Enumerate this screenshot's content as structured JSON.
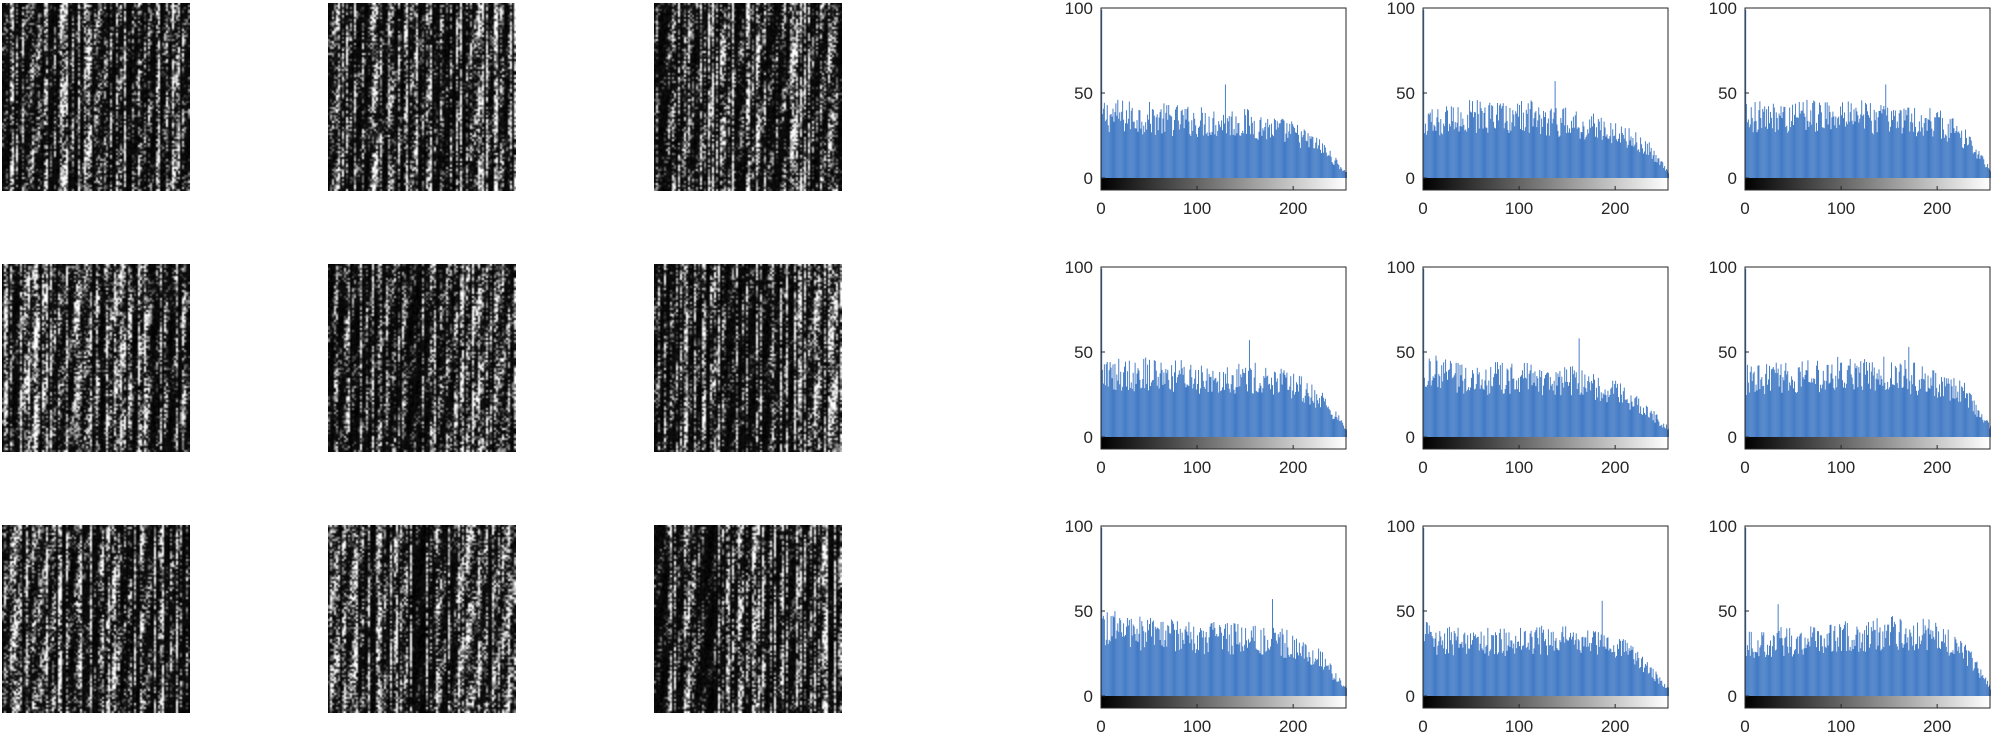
{
  "figure": {
    "images": [
      {
        "row": 0,
        "col": 0,
        "seed": 11
      },
      {
        "row": 0,
        "col": 1,
        "seed": 23
      },
      {
        "row": 0,
        "col": 2,
        "seed": 37
      },
      {
        "row": 1,
        "col": 0,
        "seed": 41
      },
      {
        "row": 1,
        "col": 1,
        "seed": 53
      },
      {
        "row": 1,
        "col": 2,
        "seed": 67
      },
      {
        "row": 2,
        "col": 0,
        "seed": 71
      },
      {
        "row": 2,
        "col": 1,
        "seed": 83
      },
      {
        "row": 2,
        "col": 2,
        "seed": 97
      }
    ]
  },
  "chart_data": [
    {
      "type": "bar",
      "panel": "histogram-r1c1",
      "xlim": [
        0,
        255
      ],
      "ylim": [
        0,
        100
      ],
      "xticks": [
        "0",
        "100",
        "200"
      ],
      "yticks": [
        "0",
        "50",
        "100"
      ],
      "bar_color": "#3f78c4",
      "colorbar": "grayscale 0-255",
      "envelope": {
        "x": [
          0,
          50,
          100,
          150,
          200,
          230,
          255
        ],
        "y": [
          38,
          36,
          34,
          33,
          27,
          18,
          3
        ]
      },
      "peak_value": 55
    },
    {
      "type": "bar",
      "panel": "histogram-r1c2",
      "xlim": [
        0,
        255
      ],
      "ylim": [
        0,
        100
      ],
      "xticks": [
        "0",
        "100",
        "200"
      ],
      "yticks": [
        "0",
        "50",
        "100"
      ],
      "bar_color": "#3f78c4",
      "colorbar": "grayscale 0-255",
      "envelope": {
        "x": [
          0,
          50,
          100,
          150,
          200,
          230,
          255
        ],
        "y": [
          32,
          37,
          38,
          33,
          28,
          20,
          4
        ]
      },
      "peak_value": 57
    },
    {
      "type": "bar",
      "panel": "histogram-r1c3",
      "xlim": [
        0,
        255
      ],
      "ylim": [
        0,
        100
      ],
      "xticks": [
        "0",
        "100",
        "200"
      ],
      "yticks": [
        "0",
        "50",
        "100"
      ],
      "bar_color": "#3f78c4",
      "colorbar": "grayscale 0-255",
      "envelope": {
        "x": [
          0,
          50,
          100,
          150,
          200,
          230,
          255
        ],
        "y": [
          36,
          37,
          37,
          36,
          33,
          24,
          5
        ]
      },
      "peak_value": 55
    },
    {
      "type": "bar",
      "panel": "histogram-r2c1",
      "xlim": [
        0,
        255
      ],
      "ylim": [
        0,
        100
      ],
      "xticks": [
        "0",
        "100",
        "200"
      ],
      "yticks": [
        "0",
        "50",
        "100"
      ],
      "bar_color": "#3f78c4",
      "colorbar": "grayscale 0-255",
      "envelope": {
        "x": [
          0,
          50,
          100,
          150,
          200,
          230,
          255
        ],
        "y": [
          38,
          38,
          36,
          36,
          31,
          22,
          5
        ]
      },
      "peak_value": 57
    },
    {
      "type": "bar",
      "panel": "histogram-r2c2",
      "xlim": [
        0,
        255
      ],
      "ylim": [
        0,
        100
      ],
      "xticks": [
        "0",
        "100",
        "200"
      ],
      "yticks": [
        "0",
        "50",
        "100"
      ],
      "bar_color": "#3f78c4",
      "colorbar": "grayscale 0-255",
      "envelope": {
        "x": [
          0,
          50,
          100,
          150,
          200,
          230,
          255
        ],
        "y": [
          40,
          35,
          36,
          34,
          27,
          17,
          5
        ]
      },
      "peak_value": 58
    },
    {
      "type": "bar",
      "panel": "histogram-r2c3",
      "xlim": [
        0,
        255
      ],
      "ylim": [
        0,
        100
      ],
      "xticks": [
        "0",
        "100",
        "200"
      ],
      "yticks": [
        "0",
        "50",
        "100"
      ],
      "bar_color": "#3f78c4",
      "colorbar": "grayscale 0-255",
      "envelope": {
        "x": [
          0,
          50,
          100,
          150,
          200,
          230,
          255
        ],
        "y": [
          35,
          36,
          38,
          38,
          33,
          25,
          6
        ]
      },
      "peak_value": 53
    },
    {
      "type": "bar",
      "panel": "histogram-r3c1",
      "xlim": [
        0,
        255
      ],
      "ylim": [
        0,
        100
      ],
      "xticks": [
        "0",
        "100",
        "200"
      ],
      "yticks": [
        "0",
        "50",
        "100"
      ],
      "bar_color": "#3f78c4",
      "colorbar": "grayscale 0-255",
      "envelope": {
        "x": [
          0,
          50,
          100,
          150,
          200,
          230,
          255
        ],
        "y": [
          42,
          37,
          35,
          35,
          31,
          21,
          4
        ]
      },
      "peak_value": 57
    },
    {
      "type": "bar",
      "panel": "histogram-r3c2",
      "xlim": [
        0,
        255
      ],
      "ylim": [
        0,
        100
      ],
      "xticks": [
        "0",
        "100",
        "200"
      ],
      "yticks": [
        "0",
        "50",
        "100"
      ],
      "bar_color": "#3f78c4",
      "colorbar": "grayscale 0-255",
      "envelope": {
        "x": [
          0,
          50,
          100,
          150,
          200,
          230,
          255
        ],
        "y": [
          35,
          32,
          33,
          34,
          30,
          19,
          4
        ]
      },
      "peak_value": 56
    },
    {
      "type": "bar",
      "panel": "histogram-r3c3",
      "xlim": [
        0,
        255
      ],
      "ylim": [
        0,
        100
      ],
      "xticks": [
        "0",
        "100",
        "200"
      ],
      "yticks": [
        "0",
        "50",
        "100"
      ],
      "bar_color": "#3f78c4",
      "colorbar": "grayscale 0-255",
      "envelope": {
        "x": [
          0,
          50,
          100,
          150,
          200,
          230,
          255
        ],
        "y": [
          31,
          33,
          35,
          38,
          36,
          25,
          5
        ]
      },
      "peak_value": 54
    }
  ]
}
